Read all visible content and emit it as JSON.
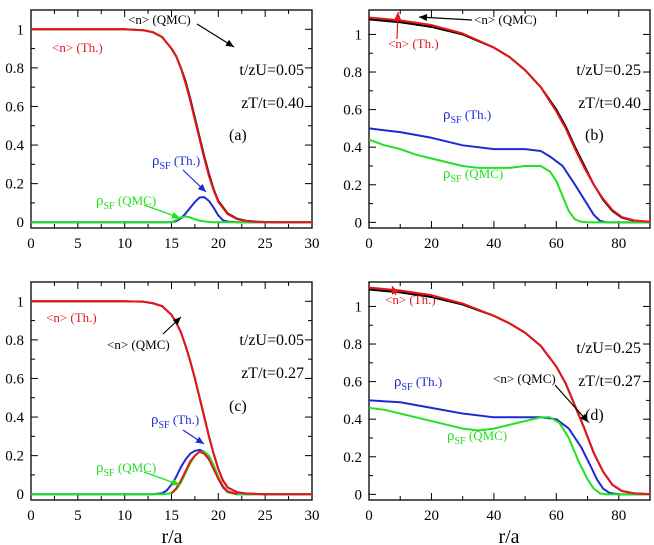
{
  "figure": {
    "xlabel": "r/a",
    "colors": {
      "qmc_n": "#000000",
      "th_n": "#e8141a",
      "th_sf": "#1c2bd6",
      "qmc_sf": "#22e022"
    }
  },
  "chart_data": [
    {
      "id": "a",
      "type": "line",
      "panel_label": "(a)",
      "params": [
        "t/zU=0.05",
        "zT/t=0.40"
      ],
      "xlabel": "",
      "ylabel": "",
      "xlim": [
        0,
        30
      ],
      "ylim": [
        -0.03,
        1.1
      ],
      "xticks": [
        0,
        5,
        10,
        15,
        20,
        25,
        30
      ],
      "xtick_labels": [
        "0",
        "5",
        "10",
        "15",
        "20",
        "25",
        "30"
      ],
      "yticks": [
        0,
        0.2,
        0.4,
        0.6,
        0.8,
        1
      ],
      "ytick_labels": [
        "0",
        "0.2",
        "0.4",
        "0.6",
        "0.8",
        "1"
      ],
      "series": [
        {
          "name": "<n> (QMC)",
          "color": "#000000",
          "x": [
            0,
            5,
            10,
            12,
            13,
            14,
            15,
            15.5,
            16,
            16.5,
            17,
            17.5,
            18,
            18.5,
            19,
            19.5,
            20,
            21,
            22,
            23,
            24,
            25,
            26,
            28,
            30
          ],
          "y": [
            1,
            1,
            1,
            0.995,
            0.985,
            0.96,
            0.9,
            0.86,
            0.8,
            0.73,
            0.64,
            0.54,
            0.44,
            0.34,
            0.25,
            0.17,
            0.11,
            0.045,
            0.018,
            0.007,
            0.003,
            0.001,
            0,
            0,
            0
          ]
        },
        {
          "name": "<n> (Th.)",
          "color": "#e8141a",
          "x": [
            0,
            5,
            10,
            12,
            13,
            14,
            15,
            15.5,
            16,
            16.5,
            17,
            17.5,
            18,
            18.5,
            19,
            19.5,
            20,
            21,
            22,
            23,
            24,
            25,
            26,
            28,
            30
          ],
          "y": [
            1,
            1,
            1,
            0.995,
            0.985,
            0.96,
            0.9,
            0.86,
            0.8,
            0.72,
            0.63,
            0.53,
            0.43,
            0.33,
            0.24,
            0.165,
            0.105,
            0.042,
            0.016,
            0.006,
            0.002,
            0.001,
            0,
            0,
            0
          ]
        },
        {
          "name": "ρSF (Th.)",
          "color": "#1c2bd6",
          "x": [
            0,
            14,
            14.8,
            15.5,
            16,
            16.5,
            17,
            17.5,
            18,
            18.5,
            19,
            19.5,
            20,
            20.5,
            21,
            22,
            30
          ],
          "y": [
            0,
            0,
            0,
            0.005,
            0.02,
            0.045,
            0.075,
            0.105,
            0.128,
            0.13,
            0.11,
            0.075,
            0.035,
            0.01,
            0.003,
            0,
            0
          ]
        },
        {
          "name": "ρSF (QMC)",
          "color": "#22e022",
          "x": [
            0,
            14,
            15,
            15.5,
            16,
            16.5,
            17,
            17.5,
            18,
            18.5,
            19,
            19.5,
            20,
            21,
            30
          ],
          "y": [
            0,
            0,
            0,
            0.012,
            0.025,
            0.03,
            0.025,
            0.015,
            0.008,
            0.004,
            0.002,
            0,
            0,
            0,
            0
          ]
        }
      ],
      "annotations": [
        {
          "text": "<n> (QMC)",
          "target": "arrow",
          "color": "#000000"
        },
        {
          "text": "<n> (Th.)",
          "color": "#e8141a"
        },
        {
          "text_main": "ρ",
          "text_sub": "SF",
          "text_tail": " (Th.)",
          "color": "#1c2bd6"
        },
        {
          "text_main": "ρ",
          "text_sub": "SF",
          "text_tail": " (QMC)",
          "color": "#22e022"
        }
      ]
    },
    {
      "id": "b",
      "type": "line",
      "panel_label": "(b)",
      "params": [
        "t/zU=0.25",
        "zT/t=0.40"
      ],
      "xlabel": "",
      "ylabel": "",
      "xlim": [
        0,
        90
      ],
      "ylim": [
        -0.03,
        1.13
      ],
      "xticks": [
        0,
        20,
        40,
        60,
        80
      ],
      "xtick_labels": [
        "0",
        "20",
        "40",
        "60",
        "80"
      ],
      "yticks": [
        0,
        0.2,
        0.4,
        0.6,
        0.8,
        1
      ],
      "ytick_labels": [
        "0",
        "0.2",
        "0.4",
        "0.6",
        "0.8",
        "1"
      ],
      "series": [
        {
          "name": "<n> (QMC)",
          "color": "#000000",
          "x": [
            0,
            10,
            20,
            30,
            40,
            45,
            50,
            55,
            60,
            63,
            66,
            69,
            72,
            75,
            78,
            81,
            85,
            90
          ],
          "y": [
            1.08,
            1.065,
            1.04,
            1.0,
            0.93,
            0.88,
            0.81,
            0.72,
            0.6,
            0.51,
            0.4,
            0.3,
            0.2,
            0.12,
            0.06,
            0.025,
            0.008,
            0.002
          ]
        },
        {
          "name": "<n> (Th.)",
          "color": "#e8141a",
          "x": [
            0,
            10,
            20,
            30,
            40,
            45,
            50,
            55,
            60,
            63,
            66,
            69,
            72,
            75,
            78,
            81,
            85,
            90
          ],
          "y": [
            1.09,
            1.075,
            1.05,
            1.005,
            0.93,
            0.88,
            0.81,
            0.72,
            0.59,
            0.5,
            0.39,
            0.29,
            0.2,
            0.125,
            0.065,
            0.028,
            0.01,
            0.003
          ]
        },
        {
          "name": "ρSF (Th.)",
          "color": "#1c2bd6",
          "x": [
            0,
            10,
            20,
            30,
            40,
            50,
            55,
            58,
            62,
            66,
            69,
            72,
            74,
            76,
            80,
            90
          ],
          "y": [
            0.5,
            0.48,
            0.45,
            0.41,
            0.39,
            0.39,
            0.38,
            0.35,
            0.3,
            0.2,
            0.12,
            0.04,
            0.008,
            0,
            0,
            0
          ]
        },
        {
          "name": "ρSF (QMC)",
          "color": "#22e022",
          "x": [
            0,
            5,
            10,
            15,
            20,
            25,
            30,
            35,
            40,
            45,
            50,
            55,
            58,
            60,
            62,
            64,
            66,
            68,
            70,
            90
          ],
          "y": [
            0.44,
            0.41,
            0.39,
            0.36,
            0.34,
            0.32,
            0.3,
            0.29,
            0.29,
            0.29,
            0.3,
            0.3,
            0.27,
            0.22,
            0.14,
            0.06,
            0.015,
            0.003,
            0,
            0
          ]
        }
      ],
      "annotations": [
        {
          "text": "<n> (QMC)",
          "color": "#000000"
        },
        {
          "text": "<n> (Th.)",
          "color": "#e8141a"
        },
        {
          "text_main": "ρ",
          "text_sub": "SF",
          "text_tail": " (Th.)",
          "color": "#1c2bd6"
        },
        {
          "text_main": "ρ",
          "text_sub": "SF",
          "text_tail": " (QMC)",
          "color": "#22e022"
        }
      ]
    },
    {
      "id": "c",
      "type": "line",
      "panel_label": "(c)",
      "params": [
        "t/zU=0.05",
        "zT/t=0.27"
      ],
      "xlabel": "r/a",
      "ylabel": "",
      "xlim": [
        0,
        30
      ],
      "ylim": [
        -0.03,
        1.1
      ],
      "xticks": [
        0,
        5,
        10,
        15,
        20,
        25,
        30
      ],
      "xtick_labels": [
        "0",
        "5",
        "10",
        "15",
        "20",
        "25",
        "30"
      ],
      "yticks": [
        0,
        0.2,
        0.4,
        0.6,
        0.8,
        1
      ],
      "ytick_labels": [
        "0",
        "0.2",
        "0.4",
        "0.6",
        "0.8",
        "1"
      ],
      "series": [
        {
          "name": "<n> (QMC)",
          "color": "#000000",
          "x": [
            0,
            5,
            10,
            12,
            13,
            14,
            15,
            15.5,
            16,
            16.5,
            17,
            17.5,
            18,
            18.5,
            19,
            19.5,
            20,
            20.5,
            21,
            22,
            23,
            25,
            30
          ],
          "y": [
            1,
            1,
            1,
            0.998,
            0.99,
            0.975,
            0.93,
            0.89,
            0.84,
            0.77,
            0.69,
            0.6,
            0.5,
            0.4,
            0.3,
            0.21,
            0.13,
            0.07,
            0.035,
            0.01,
            0.003,
            0,
            0
          ]
        },
        {
          "name": "<n> (Th.)",
          "color": "#e8141a",
          "x": [
            0,
            5,
            10,
            12,
            13,
            14,
            15,
            15.5,
            16,
            16.5,
            17,
            17.5,
            18,
            18.5,
            19,
            19.5,
            20,
            20.5,
            21,
            22,
            23,
            25,
            30
          ],
          "y": [
            1,
            1,
            1,
            0.998,
            0.99,
            0.975,
            0.93,
            0.89,
            0.84,
            0.77,
            0.69,
            0.6,
            0.5,
            0.4,
            0.3,
            0.21,
            0.13,
            0.07,
            0.035,
            0.01,
            0.003,
            0,
            0
          ]
        },
        {
          "name": "ρSF (Th.)",
          "color": "#1c2bd6",
          "x": [
            0,
            13,
            14,
            14.5,
            15,
            15.5,
            16,
            16.5,
            17,
            17.5,
            18,
            18.5,
            19,
            19.5,
            20,
            20.5,
            21,
            22,
            30
          ],
          "y": [
            0,
            0,
            0.005,
            0.02,
            0.05,
            0.09,
            0.14,
            0.18,
            0.21,
            0.225,
            0.23,
            0.22,
            0.19,
            0.14,
            0.08,
            0.035,
            0.01,
            0,
            0
          ]
        },
        {
          "name": "ρSF (QMC)",
          "color": "#22e022",
          "x": [
            0,
            14,
            15,
            15.5,
            16,
            16.5,
            17,
            17.5,
            18,
            18.5,
            19,
            19.5,
            20,
            20.5,
            21,
            22,
            30
          ],
          "y": [
            0,
            0,
            0.005,
            0.025,
            0.06,
            0.11,
            0.16,
            0.2,
            0.22,
            0.22,
            0.2,
            0.15,
            0.09,
            0.04,
            0.01,
            0,
            0
          ]
        },
        {
          "name": "<n> (Th.) overlay",
          "color": "#e8141a",
          "x": [
            15,
            15.5,
            16,
            16.5,
            17,
            17.5,
            18,
            18.5,
            19,
            19.5,
            20,
            20.5,
            21,
            22
          ],
          "y": [
            0.005,
            0.03,
            0.07,
            0.12,
            0.17,
            0.2,
            0.22,
            0.21,
            0.18,
            0.13,
            0.08,
            0.04,
            0.015,
            0
          ],
          "hidden_label": true
        }
      ],
      "annotations": [
        {
          "text": "<n> (Th.)",
          "color": "#e8141a"
        },
        {
          "text": "<n> (QMC)",
          "color": "#000000"
        },
        {
          "text_main": "ρ",
          "text_sub": "SF",
          "text_tail": " (Th.)",
          "color": "#1c2bd6"
        },
        {
          "text_main": "ρ",
          "text_sub": "SF",
          "text_tail": " (QMC)",
          "color": "#22e022"
        }
      ]
    },
    {
      "id": "d",
      "type": "line",
      "panel_label": "(d)",
      "params": [
        "t/zU=0.25",
        "zT/t=0.27"
      ],
      "xlabel": "r/a",
      "ylabel": "",
      "xlim": [
        0,
        90
      ],
      "ylim": [
        -0.03,
        1.13
      ],
      "xticks": [
        0,
        20,
        40,
        60,
        80
      ],
      "xtick_labels": [
        "0",
        "20",
        "40",
        "60",
        "80"
      ],
      "yticks": [
        0,
        0.2,
        0.4,
        0.6,
        0.8,
        1
      ],
      "ytick_labels": [
        "0",
        "0.2",
        "0.4",
        "0.6",
        "0.8",
        "1"
      ],
      "series": [
        {
          "name": "<n> (QMC)",
          "color": "#000000",
          "x": [
            0,
            10,
            20,
            30,
            40,
            45,
            50,
            55,
            60,
            63,
            66,
            69,
            72,
            75,
            78,
            81,
            85,
            90
          ],
          "y": [
            1.09,
            1.075,
            1.05,
            1.01,
            0.95,
            0.91,
            0.86,
            0.79,
            0.68,
            0.59,
            0.47,
            0.35,
            0.22,
            0.12,
            0.05,
            0.018,
            0.005,
            0.001
          ]
        },
        {
          "name": "<n> (Th.)",
          "color": "#e8141a",
          "x": [
            0,
            10,
            20,
            30,
            40,
            45,
            50,
            55,
            60,
            63,
            66,
            69,
            72,
            75,
            78,
            81,
            85,
            90
          ],
          "y": [
            1.1,
            1.085,
            1.06,
            1.015,
            0.95,
            0.91,
            0.86,
            0.79,
            0.68,
            0.59,
            0.47,
            0.35,
            0.22,
            0.12,
            0.05,
            0.018,
            0.005,
            0.001
          ]
        },
        {
          "name": "ρSF (Th.)",
          "color": "#1c2bd6",
          "x": [
            0,
            10,
            20,
            30,
            40,
            50,
            55,
            60,
            64,
            68,
            71,
            73,
            75,
            77,
            80,
            90
          ],
          "y": [
            0.5,
            0.49,
            0.46,
            0.43,
            0.41,
            0.41,
            0.41,
            0.4,
            0.35,
            0.25,
            0.15,
            0.08,
            0.03,
            0.008,
            0,
            0
          ]
        },
        {
          "name": "ρSF (QMC)",
          "color": "#22e022",
          "x": [
            0,
            5,
            10,
            15,
            20,
            25,
            30,
            35,
            40,
            45,
            50,
            55,
            58,
            61,
            64,
            67,
            70,
            72,
            74,
            76,
            90
          ],
          "y": [
            0.46,
            0.45,
            0.43,
            0.41,
            0.39,
            0.37,
            0.35,
            0.34,
            0.35,
            0.37,
            0.39,
            0.41,
            0.41,
            0.38,
            0.3,
            0.18,
            0.08,
            0.03,
            0.005,
            0,
            0
          ]
        }
      ],
      "annotations": [
        {
          "text": "<n> (Th.)",
          "color": "#e8141a"
        },
        {
          "text_main": "ρ",
          "text_sub": "SF",
          "text_tail": " (Th.)",
          "color": "#1c2bd6"
        },
        {
          "text": "<n> (QMC)",
          "color": "#000000"
        },
        {
          "text_main": "ρ",
          "text_sub": "SF",
          "text_tail": " (QMC)",
          "color": "#22e022"
        }
      ]
    }
  ]
}
